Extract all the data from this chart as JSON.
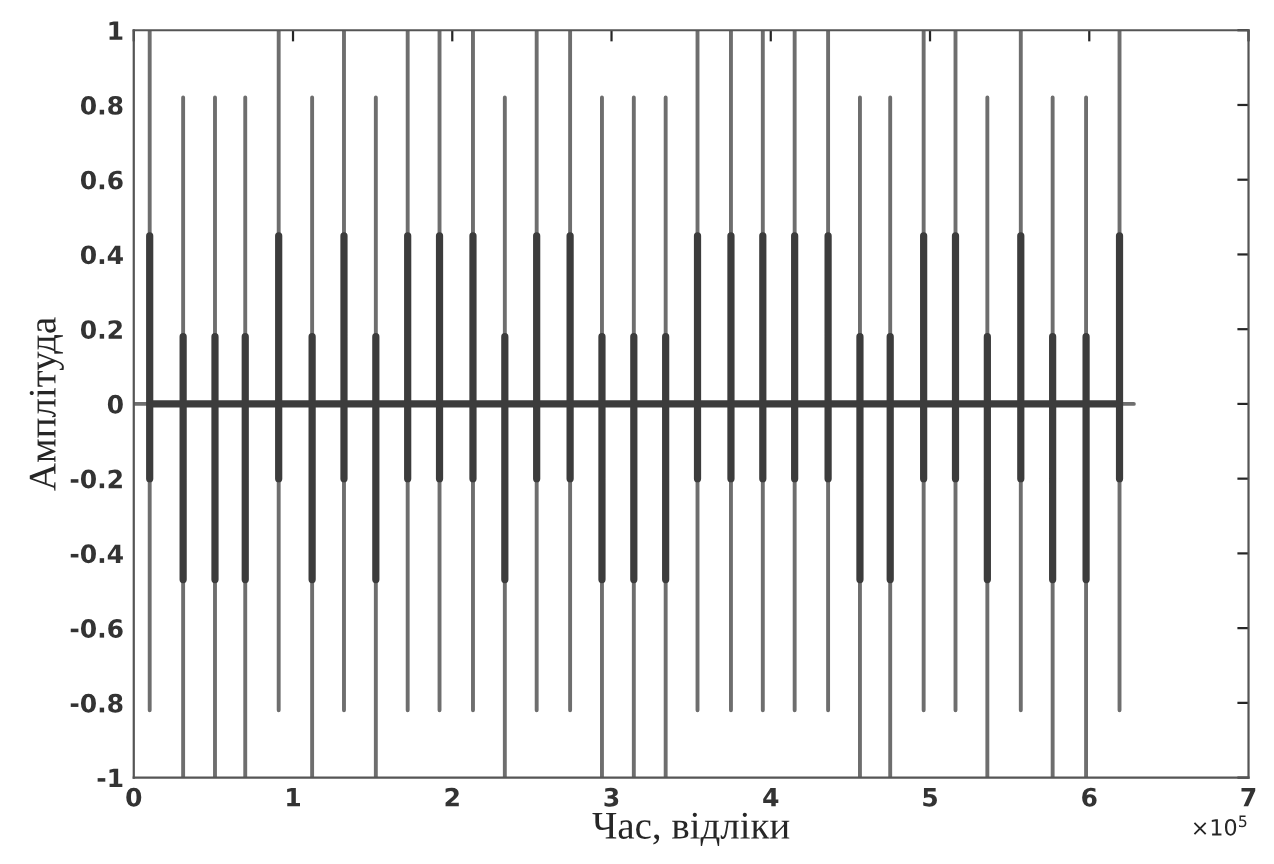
{
  "chart_data": {
    "type": "line",
    "xlabel": "Час, відліки",
    "ylabel": "Амплітуда",
    "annotations": [
      "×10$^{5}$"
    ],
    "xlim": [
      0,
      7
    ],
    "ylim": [
      -1,
      1
    ],
    "xticks": [
      0,
      1,
      2,
      3,
      4,
      5,
      6,
      7
    ],
    "yticks": [
      -1,
      -0.8,
      -0.6,
      -0.4,
      -0.2,
      0,
      0.2,
      0.4,
      0.6,
      0.8,
      1
    ],
    "grid": false,
    "legend": false,
    "marker": "none",
    "line_style": "solid",
    "series": [
      {
        "color": "#6e6e6e",
        "x": [
          0,
          0.1,
          0.1,
          0.1,
          0.1,
          0.31,
          0.31,
          0.31,
          0.31,
          0.51,
          0.51,
          0.51,
          0.51,
          0.7,
          0.7,
          0.7,
          0.7,
          0.91,
          0.91,
          0.91,
          0.91,
          1.12,
          1.12,
          1.12,
          1.12,
          1.32,
          1.32,
          1.32,
          1.32,
          1.52,
          1.52,
          1.52,
          1.52,
          1.72,
          1.72,
          1.72,
          1.72,
          1.92,
          1.92,
          1.92,
          1.92,
          2.13,
          2.13,
          2.13,
          2.13,
          2.33,
          2.33,
          2.33,
          2.33,
          2.53,
          2.53,
          2.53,
          2.53,
          2.74,
          2.74,
          2.74,
          2.74,
          2.94,
          2.94,
          2.94,
          2.94,
          3.14,
          3.14,
          3.14,
          3.14,
          3.34,
          3.34,
          3.34,
          3.34,
          3.54,
          3.54,
          3.54,
          3.54,
          3.75,
          3.75,
          3.75,
          3.75,
          3.95,
          3.95,
          3.95,
          3.95,
          4.15,
          4.15,
          4.15,
          4.15,
          4.36,
          4.36,
          4.36,
          4.36,
          4.56,
          4.56,
          4.56,
          4.56,
          4.75,
          4.75,
          4.75,
          4.75,
          4.96,
          4.96,
          4.96,
          4.96,
          5.16,
          5.16,
          5.16,
          5.16,
          5.36,
          5.36,
          5.36,
          5.36,
          5.57,
          5.57,
          5.57,
          5.57,
          5.77,
          5.77,
          5.77,
          5.77,
          5.98,
          5.98,
          5.98,
          5.98,
          6.19,
          6.19,
          6.19,
          6.19,
          6.28
        ],
        "values": [
          0,
          0,
          1,
          -0.82,
          0,
          0,
          0.82,
          -1,
          0,
          0,
          0.82,
          -1,
          0,
          0,
          0.82,
          -1,
          0,
          0,
          1,
          -0.82,
          0,
          0,
          0.82,
          -1,
          0,
          0,
          1,
          -0.82,
          0,
          0,
          0.82,
          -1,
          0,
          0,
          1,
          -0.82,
          0,
          0,
          1,
          -0.82,
          0,
          0,
          1,
          -0.82,
          0,
          0,
          0.82,
          -1,
          0,
          0,
          1,
          -0.82,
          0,
          0,
          1,
          -0.82,
          0,
          0,
          0.82,
          -1,
          0,
          0,
          0.82,
          -1,
          0,
          0,
          0.82,
          -1,
          0,
          0,
          1,
          -0.82,
          0,
          0,
          1,
          -0.82,
          0,
          0,
          1,
          -0.82,
          0,
          0,
          1,
          -0.82,
          0,
          0,
          1,
          -0.82,
          0,
          0,
          0.82,
          -1,
          0,
          0,
          0.82,
          -1,
          0,
          0,
          1,
          -0.82,
          0,
          0,
          1,
          -0.82,
          0,
          0,
          0.82,
          -1,
          0,
          0,
          1,
          -0.82,
          0,
          0,
          0.82,
          -1,
          0,
          0,
          0.82,
          -1,
          0,
          0,
          1,
          -0.82,
          0,
          0
        ]
      },
      {
        "color": "#3c3c3c",
        "x": [
          0.1,
          0.1,
          0.1,
          0.1,
          0.31,
          0.31,
          0.31,
          0.31,
          0.51,
          0.51,
          0.51,
          0.51,
          0.7,
          0.7,
          0.7,
          0.7,
          0.91,
          0.91,
          0.91,
          0.91,
          1.12,
          1.12,
          1.12,
          1.12,
          1.32,
          1.32,
          1.32,
          1.32,
          1.52,
          1.52,
          1.52,
          1.52,
          1.72,
          1.72,
          1.72,
          1.72,
          1.92,
          1.92,
          1.92,
          1.92,
          2.13,
          2.13,
          2.13,
          2.13,
          2.33,
          2.33,
          2.33,
          2.33,
          2.53,
          2.53,
          2.53,
          2.53,
          2.74,
          2.74,
          2.74,
          2.74,
          2.94,
          2.94,
          2.94,
          2.94,
          3.14,
          3.14,
          3.14,
          3.14,
          3.34,
          3.34,
          3.34,
          3.34,
          3.54,
          3.54,
          3.54,
          3.54,
          3.75,
          3.75,
          3.75,
          3.75,
          3.95,
          3.95,
          3.95,
          3.95,
          4.15,
          4.15,
          4.15,
          4.15,
          4.36,
          4.36,
          4.36,
          4.36,
          4.56,
          4.56,
          4.56,
          4.56,
          4.75,
          4.75,
          4.75,
          4.75,
          4.96,
          4.96,
          4.96,
          4.96,
          5.16,
          5.16,
          5.16,
          5.16,
          5.36,
          5.36,
          5.36,
          5.36,
          5.57,
          5.57,
          5.57,
          5.57,
          5.77,
          5.77,
          5.77,
          5.77,
          5.98,
          5.98,
          5.98,
          5.98,
          6.19,
          6.19,
          6.19,
          6.19
        ],
        "values": [
          0,
          0.45,
          -0.2,
          0,
          0,
          0.18,
          -0.47,
          0,
          0,
          0.18,
          -0.47,
          0,
          0,
          0.18,
          -0.47,
          0,
          0,
          0.45,
          -0.2,
          0,
          0,
          0.18,
          -0.47,
          0,
          0,
          0.45,
          -0.2,
          0,
          0,
          0.18,
          -0.47,
          0,
          0,
          0.45,
          -0.2,
          0,
          0,
          0.45,
          -0.2,
          0,
          0,
          0.45,
          -0.2,
          0,
          0,
          0.18,
          -0.47,
          0,
          0,
          0.45,
          -0.2,
          0,
          0,
          0.45,
          -0.2,
          0,
          0,
          0.18,
          -0.47,
          0,
          0,
          0.18,
          -0.47,
          0,
          0,
          0.18,
          -0.47,
          0,
          0,
          0.45,
          -0.2,
          0,
          0,
          0.45,
          -0.2,
          0,
          0,
          0.45,
          -0.2,
          0,
          0,
          0.45,
          -0.2,
          0,
          0,
          0.45,
          -0.2,
          0,
          0,
          0.18,
          -0.47,
          0,
          0,
          0.18,
          -0.47,
          0,
          0,
          0.45,
          -0.2,
          0,
          0,
          0.45,
          -0.2,
          0,
          0,
          0.18,
          -0.47,
          0,
          0,
          0.45,
          -0.2,
          0,
          0,
          0.18,
          -0.47,
          0,
          0,
          0.18,
          -0.47,
          0,
          0,
          0.45,
          -0.2,
          0
        ]
      }
    ]
  }
}
